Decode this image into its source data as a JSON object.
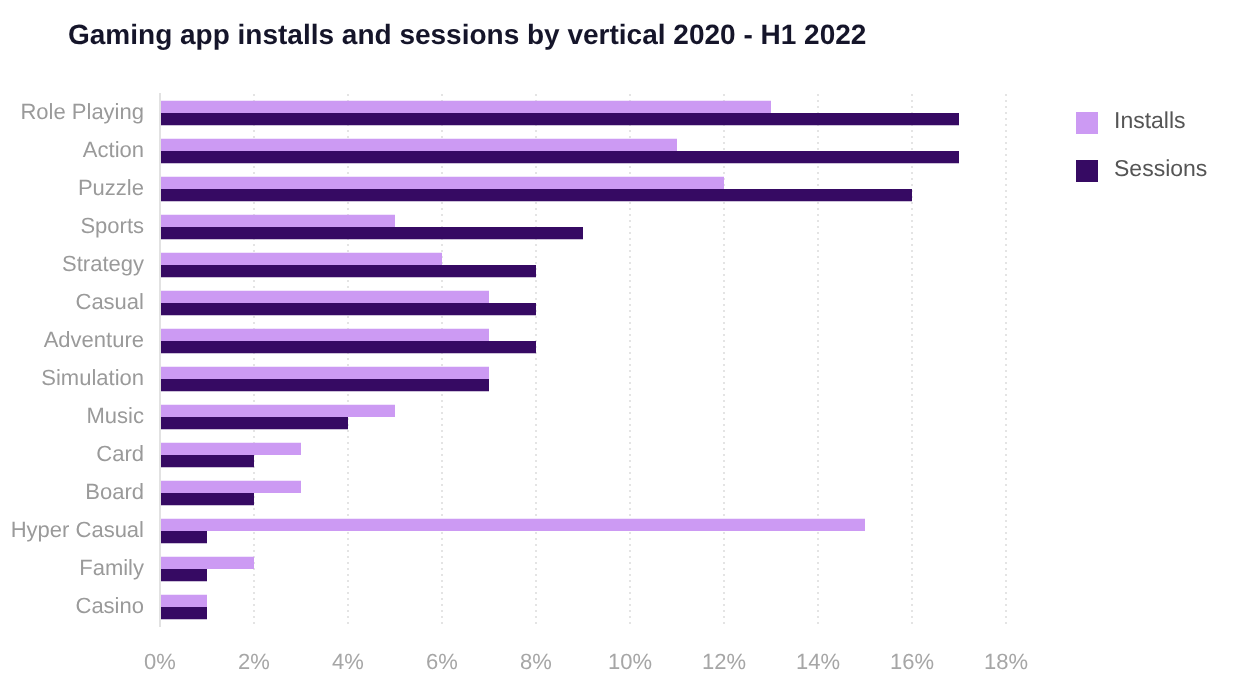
{
  "chart_data": {
    "type": "bar",
    "title": "Gaming app installs and sessions by vertical 2020 - H1 2022",
    "orientation": "horizontal",
    "categories": [
      "Role Playing",
      "Action",
      "Puzzle",
      "Sports",
      "Strategy",
      "Casual",
      "Adventure",
      "Simulation",
      "Music",
      "Card",
      "Board",
      "Hyper Casual",
      "Family",
      "Casino"
    ],
    "series": [
      {
        "name": "Installs",
        "color": "#cc9af3",
        "values": [
          13,
          11,
          12,
          5,
          6,
          7,
          7,
          7,
          5,
          3,
          3,
          15,
          2,
          1
        ]
      },
      {
        "name": "Sessions",
        "color": "#360a63",
        "values": [
          17,
          17,
          16,
          9,
          8,
          8,
          8,
          7,
          4,
          2,
          2,
          1,
          1,
          1
        ]
      }
    ],
    "xlim": [
      0,
      18
    ],
    "xticks": [
      {
        "value": 0,
        "label": "0%"
      },
      {
        "value": 2,
        "label": "2%"
      },
      {
        "value": 4,
        "label": "4%"
      },
      {
        "value": 6,
        "label": "6%"
      },
      {
        "value": 8,
        "label": "8%"
      },
      {
        "value": 10,
        "label": "10%"
      },
      {
        "value": 12,
        "label": "12%"
      },
      {
        "value": 14,
        "label": "14%"
      },
      {
        "value": 16,
        "label": "16%"
      },
      {
        "value": 18,
        "label": "18%"
      }
    ],
    "grid": "x",
    "legend": "top right"
  }
}
